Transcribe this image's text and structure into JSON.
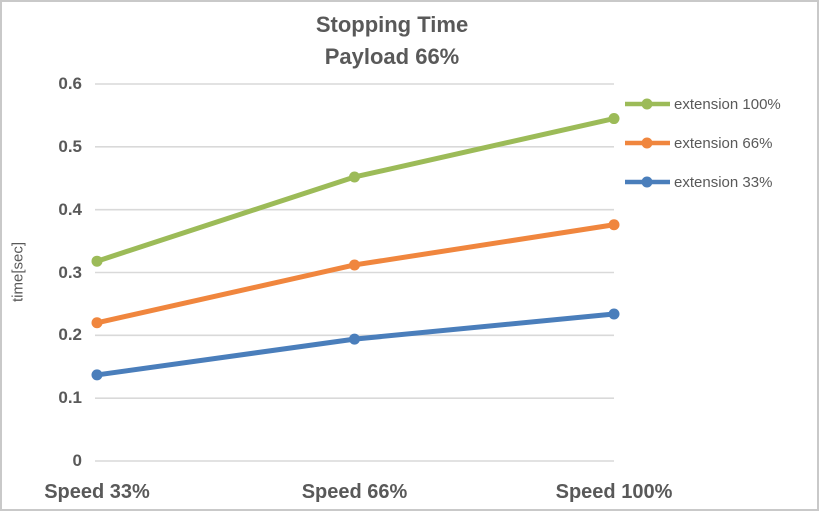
{
  "chart_data": {
    "type": "line",
    "title": "Stopping Time",
    "subtitle": "Payload 66%",
    "ylabel": "time[sec]",
    "xlabel": "",
    "categories": [
      "Speed 33%",
      "Speed 66%",
      "Speed 100%"
    ],
    "series": [
      {
        "name": "extension 100%",
        "color": "#9CBB58",
        "values": [
          0.318,
          0.452,
          0.545
        ]
      },
      {
        "name": "extension 66%",
        "color": "#F0863E",
        "values": [
          0.22,
          0.312,
          0.376
        ]
      },
      {
        "name": "extension 33%",
        "color": "#4A7EBB",
        "values": [
          0.137,
          0.194,
          0.234
        ]
      }
    ],
    "ylim": [
      0,
      0.6
    ],
    "yticks": [
      {
        "value": 0,
        "label": "0"
      },
      {
        "value": 0.1,
        "label": "0.1"
      },
      {
        "value": 0.2,
        "label": "0.2"
      },
      {
        "value": 0.3,
        "label": "0.3"
      },
      {
        "value": 0.4,
        "label": "0.4"
      },
      {
        "value": 0.5,
        "label": "0.5"
      },
      {
        "value": 0.6,
        "label": "0.6"
      }
    ],
    "grid": "horizontal",
    "legend_position": "right",
    "marker": "circle",
    "colors": {
      "text": "#595959",
      "gridline": "#D9D9D9",
      "border": "#C9C9C9",
      "background": "#FFFFFF"
    }
  }
}
